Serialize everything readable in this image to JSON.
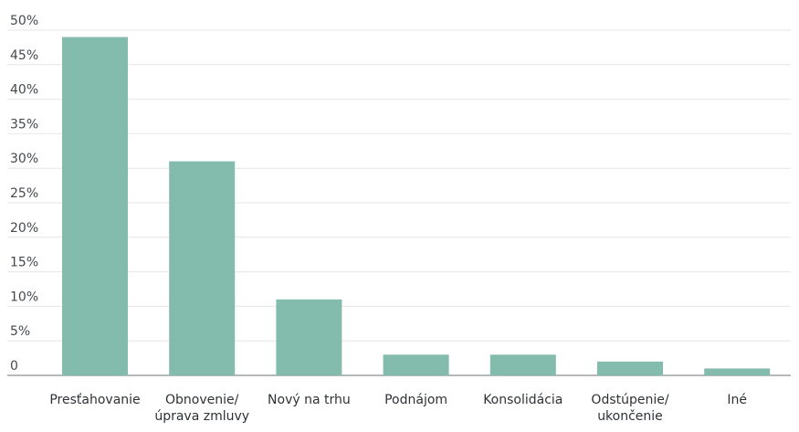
{
  "chart_data": {
    "type": "bar",
    "title": "",
    "xlabel": "",
    "ylabel": "",
    "categories": [
      [
        "Presťahovanie"
      ],
      [
        "Obnovenie/",
        "úprava zmluvy"
      ],
      [
        "Nový na trhu"
      ],
      [
        "Podnájom"
      ],
      [
        "Konsolidácia"
      ],
      [
        "Odstúpenie/",
        "ukončenie"
      ],
      [
        "Iné"
      ]
    ],
    "values": [
      49,
      31,
      11,
      3,
      3,
      2,
      1
    ],
    "yticks": [
      "0",
      "5%",
      "10%",
      "15%",
      "20%",
      "25%",
      "30%",
      "35%",
      "40%",
      "45%",
      "50%"
    ],
    "ylim": [
      0,
      50
    ],
    "grid": true,
    "bar_color": "#83bcad"
  }
}
